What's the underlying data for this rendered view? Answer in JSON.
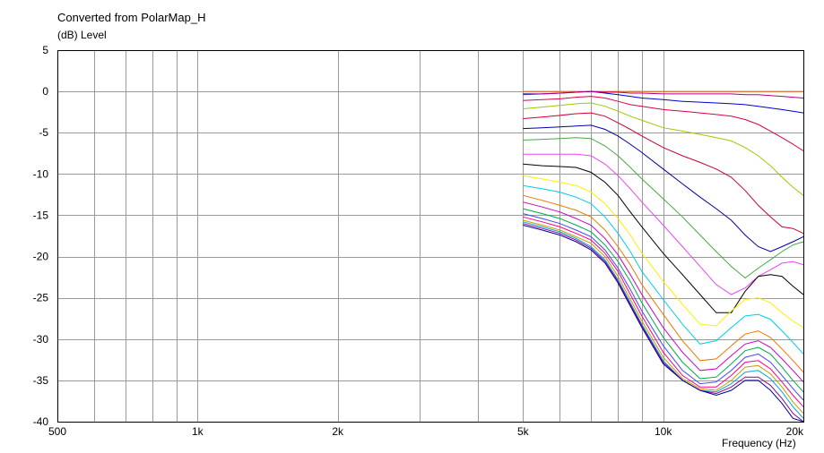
{
  "chart_data": {
    "type": "line",
    "title": "Converted from PolarMap_H",
    "ylabel": "(dB)  Level",
    "xlabel": "Frequency  (Hz)",
    "xscale": "log",
    "xlim": [
      500,
      20000
    ],
    "ylim": [
      -40,
      5
    ],
    "grid": true,
    "x_tick_labels": [
      "500",
      "1k",
      "2k",
      "5k",
      "10k",
      "20k"
    ],
    "x_tick_values": [
      500,
      1000,
      2000,
      5000,
      10000,
      20000
    ],
    "y_ticks": [
      5,
      0,
      -5,
      -10,
      -15,
      -20,
      -25,
      -30,
      -35,
      -40
    ],
    "x": [
      5000,
      5500,
      6000,
      6500,
      7000,
      7500,
      8000,
      8500,
      9000,
      10000,
      11000,
      12000,
      13000,
      14000,
      15000,
      16000,
      17000,
      18000,
      19000,
      20000
    ],
    "series": [
      {
        "color": "#ff6600",
        "values": [
          0,
          0,
          0,
          0,
          0,
          0,
          0,
          0,
          0,
          0,
          0,
          0,
          0,
          0,
          0,
          0,
          0,
          0,
          0,
          0
        ]
      },
      {
        "color": "#0000cc",
        "values": [
          -0.3,
          -0.3,
          -0.2,
          -0.1,
          0,
          -0.2,
          -0.4,
          -0.6,
          -0.8,
          -1.0,
          -1.2,
          -1.3,
          -1.4,
          -1.5,
          -1.6,
          -1.8,
          -2.0,
          -2.2,
          -2.4,
          -2.6
        ]
      },
      {
        "color": "#aa0088",
        "values": [
          -0.4,
          -0.3,
          -0.2,
          -0.1,
          0,
          -0.1,
          -0.1,
          -0.2,
          -0.2,
          -0.3,
          -0.3,
          -0.3,
          -0.3,
          -0.3,
          -0.4,
          -0.4,
          -0.5,
          -0.6,
          -0.7,
          -0.8
        ]
      },
      {
        "color": "#dd0044",
        "values": [
          -1.1,
          -1.0,
          -0.9,
          -0.7,
          -0.6,
          -0.8,
          -1.2,
          -1.6,
          -1.8,
          -2.2,
          -2.4,
          -2.6,
          -2.8,
          -3.0,
          -3.4,
          -4.0,
          -4.8,
          -5.6,
          -6.4,
          -7.2
        ]
      },
      {
        "color": "#99cc00",
        "values": [
          -2.1,
          -1.9,
          -1.7,
          -1.5,
          -1.4,
          -1.8,
          -2.4,
          -3.0,
          -3.5,
          -4.4,
          -4.8,
          -5.2,
          -5.6,
          -6.0,
          -6.8,
          -7.8,
          -9.0,
          -10.4,
          -11.6,
          -12.6
        ]
      },
      {
        "color": "#cc0033",
        "values": [
          -3.3,
          -3.1,
          -2.9,
          -2.7,
          -2.6,
          -3.0,
          -3.8,
          -4.6,
          -5.4,
          -6.8,
          -7.8,
          -8.6,
          -9.4,
          -10.4,
          -12.0,
          -13.8,
          -15.2,
          -16.4,
          -16.6,
          -17.2
        ]
      },
      {
        "color": "#0000aa",
        "values": [
          -4.5,
          -4.4,
          -4.3,
          -4.2,
          -4.1,
          -4.6,
          -5.4,
          -6.4,
          -7.4,
          -9.4,
          -11.2,
          -12.8,
          -14.2,
          -15.6,
          -17.4,
          -18.8,
          -19.4,
          -18.8,
          -18.2,
          -17.6
        ]
      },
      {
        "color": "#44aa44",
        "values": [
          -5.9,
          -5.8,
          -5.7,
          -5.6,
          -5.7,
          -6.6,
          -7.8,
          -9.2,
          -10.6,
          -13.0,
          -15.2,
          -17.4,
          -19.4,
          -21.2,
          -22.6,
          -21.4,
          -20.4,
          -19.4,
          -18.6,
          -18.2
        ]
      },
      {
        "color": "#ee44ee",
        "values": [
          -7.6,
          -7.6,
          -7.6,
          -7.6,
          -7.8,
          -8.8,
          -10.2,
          -11.8,
          -13.4,
          -16.2,
          -18.8,
          -21.2,
          -23.4,
          -24.6,
          -23.8,
          -22.4,
          -21.6,
          -20.8,
          -20.6,
          -21.0
        ]
      },
      {
        "color": "#000000",
        "values": [
          -8.8,
          -9.0,
          -9.1,
          -9.2,
          -9.8,
          -11.0,
          -12.6,
          -14.6,
          -16.4,
          -19.6,
          -22.2,
          -24.6,
          -26.8,
          -26.8,
          -24.2,
          -22.4,
          -22.2,
          -22.4,
          -23.6,
          -24.6
        ]
      },
      {
        "color": "#ffee00",
        "values": [
          -10.2,
          -10.6,
          -11.0,
          -11.4,
          -12.2,
          -13.6,
          -15.4,
          -17.4,
          -19.6,
          -23.0,
          -25.8,
          -28.2,
          -28.4,
          -26.6,
          -25.2,
          -25.0,
          -25.6,
          -26.8,
          -27.8,
          -28.6
        ]
      },
      {
        "color": "#00ccee",
        "values": [
          -11.4,
          -11.8,
          -12.2,
          -12.8,
          -13.6,
          -15.2,
          -17.2,
          -19.4,
          -21.8,
          -25.2,
          -28.2,
          -30.6,
          -30.2,
          -28.6,
          -27.2,
          -27.0,
          -27.6,
          -29.0,
          -30.4,
          -31.8
        ]
      },
      {
        "color": "#ee7700",
        "values": [
          -12.6,
          -13.2,
          -13.8,
          -14.4,
          -15.2,
          -16.8,
          -18.8,
          -21.0,
          -23.4,
          -27.0,
          -30.2,
          -32.6,
          -32.4,
          -30.8,
          -29.4,
          -29.0,
          -29.8,
          -31.2,
          -32.6,
          -34.0
        ]
      },
      {
        "color": "#cc00cc",
        "values": [
          -13.4,
          -14.0,
          -14.6,
          -15.4,
          -16.2,
          -17.8,
          -19.8,
          -22.2,
          -24.6,
          -28.6,
          -31.6,
          -33.8,
          -33.6,
          -32.0,
          -30.6,
          -30.2,
          -31.0,
          -32.4,
          -33.8,
          -35.2
        ]
      },
      {
        "color": "#00aa44",
        "values": [
          -14.2,
          -14.8,
          -15.4,
          -16.2,
          -17.0,
          -18.6,
          -20.6,
          -23.0,
          -25.6,
          -29.8,
          -32.8,
          -34.8,
          -34.6,
          -33.0,
          -31.4,
          -31.0,
          -31.8,
          -33.4,
          -35.0,
          -36.4
        ]
      },
      {
        "color": "#4444ff",
        "values": [
          -14.8,
          -15.4,
          -16.0,
          -16.8,
          -17.6,
          -19.2,
          -21.4,
          -24.0,
          -26.6,
          -30.8,
          -33.8,
          -35.4,
          -35.2,
          -33.8,
          -32.2,
          -31.8,
          -32.8,
          -34.4,
          -36.0,
          -37.4
        ]
      },
      {
        "color": "#ff0088",
        "values": [
          -15.2,
          -15.8,
          -16.4,
          -17.2,
          -18.0,
          -19.6,
          -21.8,
          -24.6,
          -27.2,
          -31.6,
          -34.4,
          -35.8,
          -35.8,
          -34.4,
          -32.8,
          -32.6,
          -33.6,
          -35.2,
          -36.8,
          -38.2
        ]
      },
      {
        "color": "#cc9900",
        "values": [
          -15.6,
          -16.2,
          -16.8,
          -17.6,
          -18.4,
          -20.0,
          -22.4,
          -25.2,
          -27.8,
          -32.2,
          -34.8,
          -36.0,
          -36.2,
          -35.0,
          -33.4,
          -33.2,
          -34.2,
          -35.8,
          -37.6,
          -39.0
        ]
      },
      {
        "color": "#00aacc",
        "values": [
          -15.8,
          -16.4,
          -17.0,
          -17.8,
          -18.8,
          -20.4,
          -22.8,
          -25.6,
          -28.2,
          -32.6,
          -35.0,
          -36.2,
          -36.4,
          -35.4,
          -34.0,
          -33.8,
          -34.8,
          -36.4,
          -38.2,
          -39.6
        ]
      },
      {
        "color": "#990099",
        "values": [
          -16.0,
          -16.6,
          -17.2,
          -18.0,
          -19.0,
          -20.6,
          -23.0,
          -25.8,
          -28.4,
          -32.8,
          -35.0,
          -36.2,
          -36.6,
          -35.8,
          -34.6,
          -34.6,
          -35.6,
          -37.2,
          -39.0,
          -40.0
        ]
      },
      {
        "color": "#000099",
        "values": [
          -16.2,
          -16.8,
          -17.4,
          -18.2,
          -19.2,
          -20.8,
          -23.2,
          -26.0,
          -28.6,
          -33.0,
          -35.0,
          -36.2,
          -36.8,
          -36.2,
          -35.0,
          -35.0,
          -36.2,
          -37.8,
          -39.6,
          -40.0
        ]
      }
    ]
  }
}
